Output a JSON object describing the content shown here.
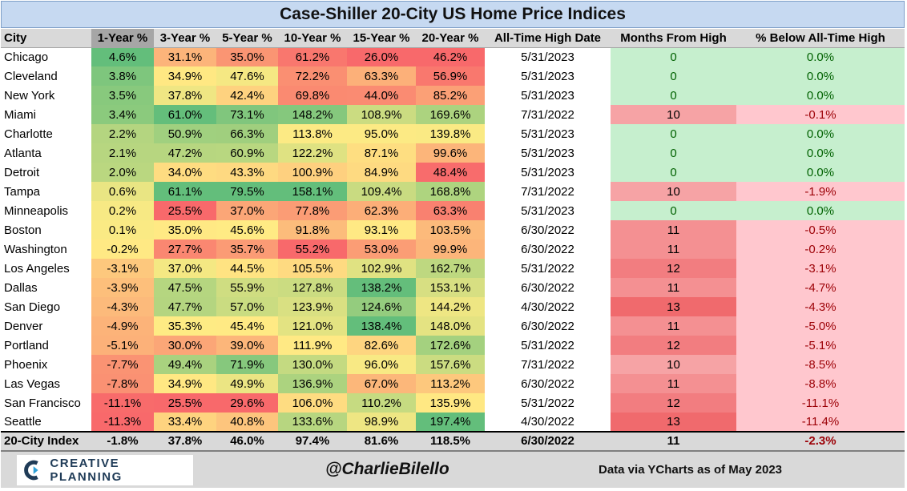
{
  "title": "Case-Shiller 20-City US Home Price Indices",
  "headers": [
    "City",
    "1-Year %",
    "3-Year %",
    "5-Year %",
    "10-Year %",
    "15-Year %",
    "20-Year %",
    "All-Time High Date",
    "Months From High",
    "% Below All-Time High"
  ],
  "rows": [
    {
      "city": "Chicago",
      "y1": "4.6%",
      "y3": "31.1%",
      "y5": "35.0%",
      "y10": "61.2%",
      "y15": "26.0%",
      "y20": "46.2%",
      "ath_date": "5/31/2023",
      "months": "0",
      "below": "0.0%"
    },
    {
      "city": "Cleveland",
      "y1": "3.8%",
      "y3": "34.9%",
      "y5": "47.6%",
      "y10": "72.2%",
      "y15": "63.3%",
      "y20": "56.9%",
      "ath_date": "5/31/2023",
      "months": "0",
      "below": "0.0%"
    },
    {
      "city": "New York",
      "y1": "3.5%",
      "y3": "37.8%",
      "y5": "42.4%",
      "y10": "69.8%",
      "y15": "44.0%",
      "y20": "85.2%",
      "ath_date": "5/31/2023",
      "months": "0",
      "below": "0.0%"
    },
    {
      "city": "Miami",
      "y1": "3.4%",
      "y3": "61.0%",
      "y5": "73.1%",
      "y10": "148.2%",
      "y15": "108.9%",
      "y20": "169.6%",
      "ath_date": "7/31/2022",
      "months": "10",
      "below": "-0.1%"
    },
    {
      "city": "Charlotte",
      "y1": "2.2%",
      "y3": "50.9%",
      "y5": "66.3%",
      "y10": "113.8%",
      "y15": "95.0%",
      "y20": "139.8%",
      "ath_date": "5/31/2023",
      "months": "0",
      "below": "0.0%"
    },
    {
      "city": "Atlanta",
      "y1": "2.1%",
      "y3": "47.2%",
      "y5": "60.9%",
      "y10": "122.2%",
      "y15": "87.1%",
      "y20": "99.6%",
      "ath_date": "5/31/2023",
      "months": "0",
      "below": "0.0%"
    },
    {
      "city": "Detroit",
      "y1": "2.0%",
      "y3": "34.0%",
      "y5": "43.3%",
      "y10": "100.9%",
      "y15": "84.9%",
      "y20": "48.4%",
      "ath_date": "5/31/2023",
      "months": "0",
      "below": "0.0%"
    },
    {
      "city": "Tampa",
      "y1": "0.6%",
      "y3": "61.1%",
      "y5": "79.5%",
      "y10": "158.1%",
      "y15": "109.4%",
      "y20": "168.8%",
      "ath_date": "7/31/2022",
      "months": "10",
      "below": "-1.9%"
    },
    {
      "city": "Minneapolis",
      "y1": "0.2%",
      "y3": "25.5%",
      "y5": "37.0%",
      "y10": "77.8%",
      "y15": "62.3%",
      "y20": "63.3%",
      "ath_date": "5/31/2023",
      "months": "0",
      "below": "0.0%"
    },
    {
      "city": "Boston",
      "y1": "0.1%",
      "y3": "35.0%",
      "y5": "45.6%",
      "y10": "91.8%",
      "y15": "93.1%",
      "y20": "103.5%",
      "ath_date": "6/30/2022",
      "months": "11",
      "below": "-0.5%"
    },
    {
      "city": "Washington",
      "y1": "-0.2%",
      "y3": "27.7%",
      "y5": "35.7%",
      "y10": "55.2%",
      "y15": "53.0%",
      "y20": "99.9%",
      "ath_date": "6/30/2022",
      "months": "11",
      "below": "-0.2%"
    },
    {
      "city": "Los Angeles",
      "y1": "-3.1%",
      "y3": "37.0%",
      "y5": "44.5%",
      "y10": "105.5%",
      "y15": "102.9%",
      "y20": "162.7%",
      "ath_date": "5/31/2022",
      "months": "12",
      "below": "-3.1%"
    },
    {
      "city": "Dallas",
      "y1": "-3.9%",
      "y3": "47.5%",
      "y5": "55.9%",
      "y10": "127.8%",
      "y15": "138.2%",
      "y20": "153.1%",
      "ath_date": "6/30/2022",
      "months": "11",
      "below": "-4.7%"
    },
    {
      "city": "San Diego",
      "y1": "-4.3%",
      "y3": "47.7%",
      "y5": "57.0%",
      "y10": "123.9%",
      "y15": "124.6%",
      "y20": "144.2%",
      "ath_date": "4/30/2022",
      "months": "13",
      "below": "-4.3%"
    },
    {
      "city": "Denver",
      "y1": "-4.9%",
      "y3": "35.3%",
      "y5": "45.4%",
      "y10": "121.0%",
      "y15": "138.4%",
      "y20": "148.0%",
      "ath_date": "6/30/2022",
      "months": "11",
      "below": "-5.0%"
    },
    {
      "city": "Portland",
      "y1": "-5.1%",
      "y3": "30.0%",
      "y5": "39.0%",
      "y10": "111.9%",
      "y15": "82.6%",
      "y20": "172.6%",
      "ath_date": "5/31/2022",
      "months": "12",
      "below": "-5.1%"
    },
    {
      "city": "Phoenix",
      "y1": "-7.7%",
      "y3": "49.4%",
      "y5": "71.9%",
      "y10": "130.0%",
      "y15": "96.0%",
      "y20": "157.6%",
      "ath_date": "7/31/2022",
      "months": "10",
      "below": "-8.5%"
    },
    {
      "city": "Las Vegas",
      "y1": "-7.8%",
      "y3": "34.9%",
      "y5": "49.9%",
      "y10": "136.9%",
      "y15": "67.0%",
      "y20": "113.2%",
      "ath_date": "6/30/2022",
      "months": "11",
      "below": "-8.8%"
    },
    {
      "city": "San Francisco",
      "y1": "-11.1%",
      "y3": "25.5%",
      "y5": "29.6%",
      "y10": "106.0%",
      "y15": "110.2%",
      "y20": "135.9%",
      "ath_date": "5/31/2022",
      "months": "12",
      "below": "-11.1%"
    },
    {
      "city": "Seattle",
      "y1": "-11.3%",
      "y3": "33.4%",
      "y5": "40.8%",
      "y10": "133.6%",
      "y15": "98.9%",
      "y20": "197.4%",
      "ath_date": "4/30/2022",
      "months": "13",
      "below": "-11.4%"
    }
  ],
  "total": {
    "city": "20-City Index",
    "y1": "-1.8%",
    "y3": "37.8%",
    "y5": "46.0%",
    "y10": "97.4%",
    "y15": "81.6%",
    "y20": "118.5%",
    "ath_date": "6/30/2022",
    "months": "11",
    "below": "-2.3%"
  },
  "footer": {
    "logo_text": "CREATIVE PLANNING",
    "handle": "@CharlieBilello",
    "source": "Data via YCharts as of May 2023"
  },
  "colors": {
    "scale_low": "#f8696b",
    "scale_mid": "#ffeb84",
    "scale_high": "#63be7b",
    "at_high_fill": "#c6efce",
    "at_high_text": "#006100",
    "below_fill": "#ffc7ce",
    "below_text": "#9c0006",
    "header_fill": "#d9d9d9",
    "title_fill": "#c6d9f1"
  },
  "chart_data": {
    "type": "table",
    "title": "Case-Shiller 20-City US Home Price Indices",
    "columns": [
      "City",
      "1-Year %",
      "3-Year %",
      "5-Year %",
      "10-Year %",
      "15-Year %",
      "20-Year %",
      "All-Time High Date",
      "Months From High",
      "% Below All-Time High"
    ],
    "sorted_by": "1-Year %",
    "color_scale": "red-yellow-green per column"
  }
}
